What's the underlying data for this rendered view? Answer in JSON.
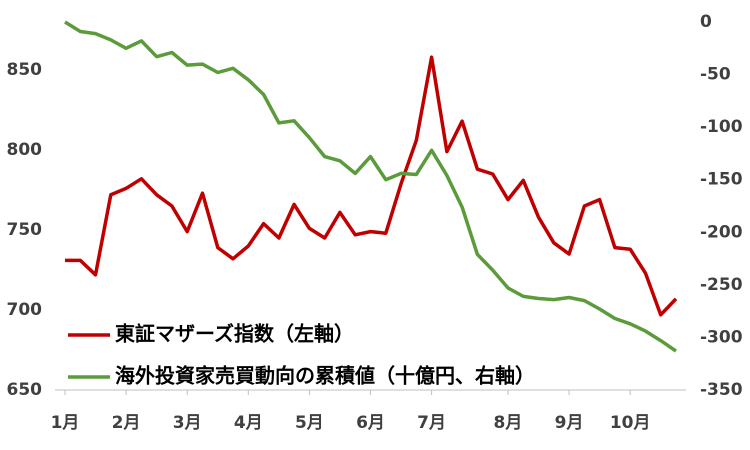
{
  "chart_data": {
    "type": "line",
    "categories": [
      "1月",
      null,
      null,
      null,
      "2月",
      null,
      null,
      null,
      "3月",
      null,
      null,
      null,
      "4月",
      null,
      null,
      null,
      "5月",
      null,
      null,
      null,
      "6月",
      null,
      null,
      null,
      "7月",
      null,
      null,
      null,
      null,
      "8月",
      null,
      null,
      null,
      "9月",
      null,
      null,
      null,
      "10月",
      null,
      null,
      null
    ],
    "series": [
      {
        "name": "東証マザーズ指数（左軸）",
        "color": "#c00000",
        "values": [
          731,
          731,
          722,
          772,
          776,
          782,
          772,
          765,
          749,
          773,
          739,
          732,
          740,
          754,
          745,
          766,
          751,
          745,
          761,
          747,
          749,
          748,
          779,
          806,
          858,
          799,
          818,
          788,
          785,
          769,
          781,
          758,
          742,
          735,
          765,
          769,
          739,
          738,
          723,
          697,
          707
        ]
      },
      {
        "name": "海外投資家売買動向の累積値（十億円、右軸）",
        "color": "#5b9b3b",
        "axis": "y2",
        "values": [
          0,
          -9,
          -11,
          -17,
          -25,
          -18,
          -33,
          -29,
          -41,
          -40,
          -48,
          -44,
          -55,
          -69,
          -96,
          -94,
          -110,
          -128,
          -132,
          -144,
          -128,
          -150,
          -144,
          -145,
          -122,
          -146,
          -176,
          -221,
          -236,
          -253,
          -261,
          -263,
          -264,
          -262,
          -265,
          -273,
          -282,
          -287,
          -294,
          -303,
          -313
        ]
      }
    ],
    "ylim": [
      650,
      880
    ],
    "yticks": [
      650,
      700,
      750,
      800,
      850
    ],
    "y2lim": [
      -350,
      0
    ],
    "y2ticks": [
      -350,
      -300,
      -250,
      -200,
      -150,
      -100,
      -50,
      0
    ],
    "legend": "lower left"
  }
}
